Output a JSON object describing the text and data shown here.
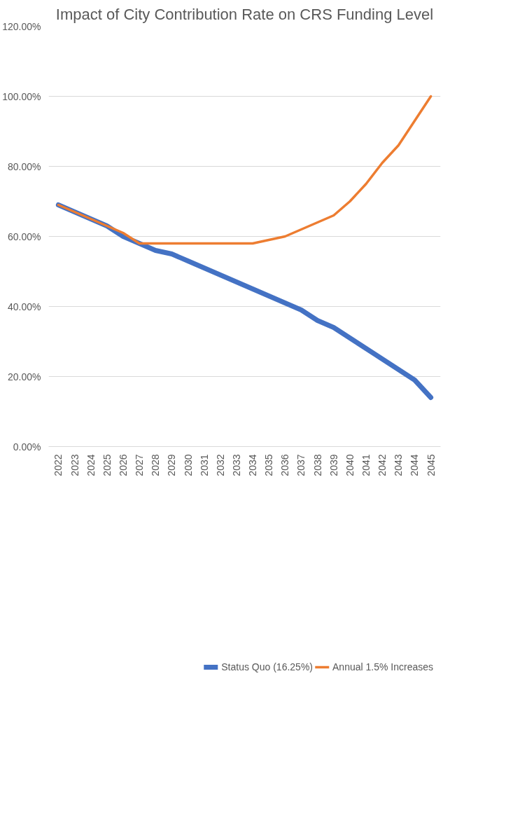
{
  "chart_data": {
    "type": "line",
    "title": "Impact of City Contribution Rate on CRS Funding Level",
    "categories": [
      "2022",
      "2023",
      "2024",
      "2025",
      "2026",
      "2027",
      "2028",
      "2029",
      "2030",
      "2031",
      "2032",
      "2033",
      "2034",
      "2035",
      "2036",
      "2037",
      "2038",
      "2039",
      "2040",
      "2041",
      "2042",
      "2043",
      "2044",
      "2045"
    ],
    "series": [
      {
        "name": "Status Quo (16.25%)",
        "color": "#4472c4",
        "values": [
          69,
          67,
          65,
          63,
          60,
          58,
          56,
          55,
          53,
          51,
          49,
          47,
          45,
          43,
          41,
          39,
          36,
          34,
          31,
          28,
          25,
          22,
          19,
          14
        ]
      },
      {
        "name": "Annual 1.5% Increases",
        "color": "#ed7d31",
        "values": [
          69,
          67,
          65,
          63,
          61,
          58,
          58,
          58,
          58,
          58,
          58,
          58,
          58,
          59,
          60,
          62,
          64,
          66,
          70,
          75,
          81,
          86,
          93,
          100
        ]
      }
    ],
    "ylim": [
      0,
      120
    ],
    "yticks": [
      {
        "value": 0,
        "label": "0.00%"
      },
      {
        "value": 20,
        "label": "20.00%"
      },
      {
        "value": 40,
        "label": "40.00%"
      },
      {
        "value": 60,
        "label": "60.00%"
      },
      {
        "value": 80,
        "label": "80.00%"
      },
      {
        "value": 100,
        "label": "100.00%"
      },
      {
        "value": 120,
        "label": "120.00%"
      }
    ],
    "grid": "y",
    "legend": "bottom"
  }
}
